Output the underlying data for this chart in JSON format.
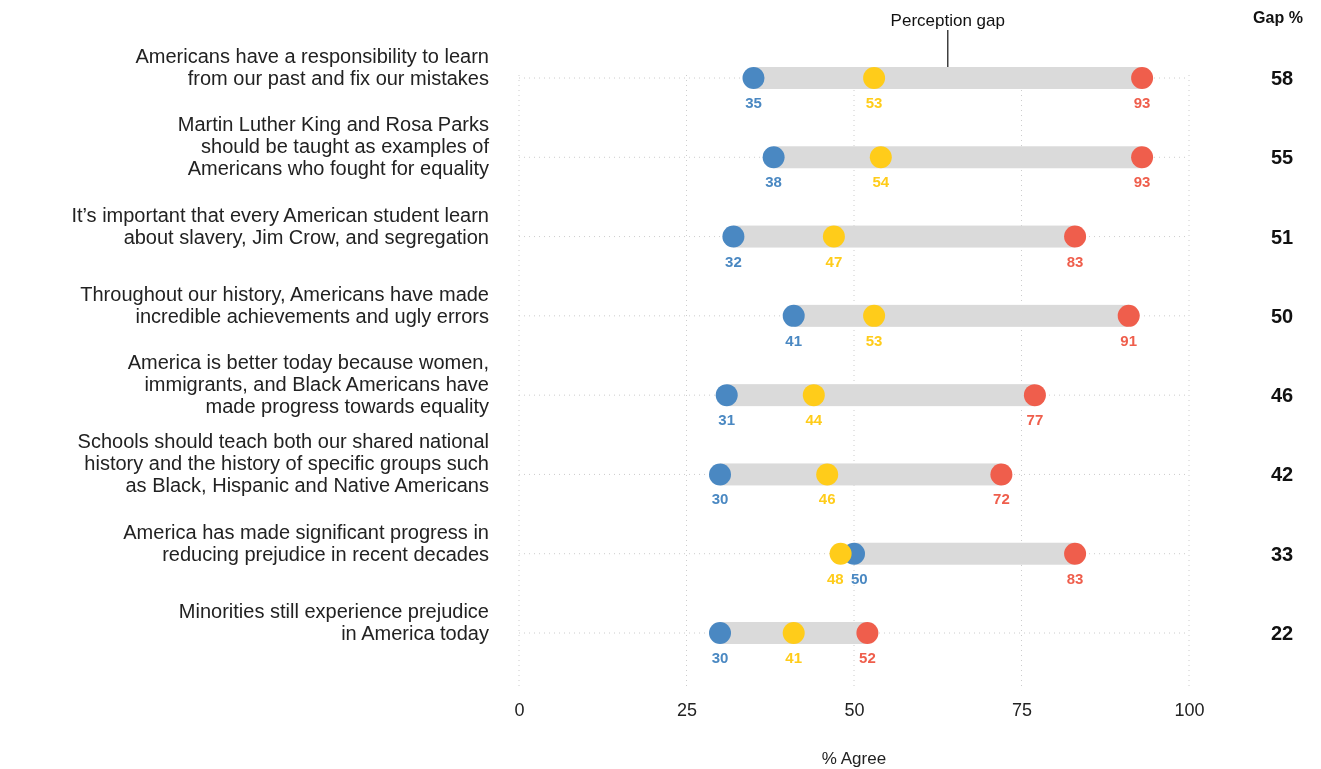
{
  "chart_data": {
    "type": "scatter",
    "orientation": "horizontal",
    "categories": [
      "Americans have a responsibility to learn\nfrom our past and fix our mistakes",
      "Martin Luther King and Rosa Parks\nshould be taught as examples of\nAmericans who fought for equality",
      "It’s important that every American student learn\nabout slavery, Jim Crow, and segregation",
      "Throughout our history, Americans have made\nincredible achievements and ugly errors",
      "America is better today because women,\nimmigrants, and Black Americans have\nmade progress towards equality",
      "Schools should teach both our shared national\nhistory and the history of specific groups such\nas Black, Hispanic and Native Americans",
      "America has made significant progress in\nreducing prejudice in recent decades",
      "Minorities still experience prejudice\nin America today"
    ],
    "series": [
      {
        "type": "bar",
        "color": "#dadada",
        "base": [
          35,
          38,
          32,
          41,
          31,
          30,
          50,
          30
        ],
        "values": [
          58,
          55,
          51,
          50,
          46,
          42,
          33,
          22
        ],
        "value_labels": [
          "58",
          "55",
          "51",
          "50",
          "46",
          "42",
          "33",
          "22"
        ]
      },
      {
        "color": "#4a88c2",
        "values": [
          35,
          38,
          32,
          41,
          31,
          30,
          50,
          30
        ]
      },
      {
        "color": "#ffcc1a",
        "values": [
          53,
          54,
          47,
          53,
          44,
          46,
          48,
          41
        ]
      },
      {
        "color": "#ef5e4c",
        "values": [
          93,
          93,
          83,
          91,
          77,
          72,
          83,
          52
        ]
      }
    ],
    "xlim": [
      0,
      100
    ],
    "xticks": [
      0,
      25,
      50,
      75,
      100
    ],
    "xlabel": "% Agree",
    "grid": true,
    "marker": "circle",
    "data_labels": true,
    "annotations": [
      "Perception gap",
      "Gap %"
    ]
  }
}
